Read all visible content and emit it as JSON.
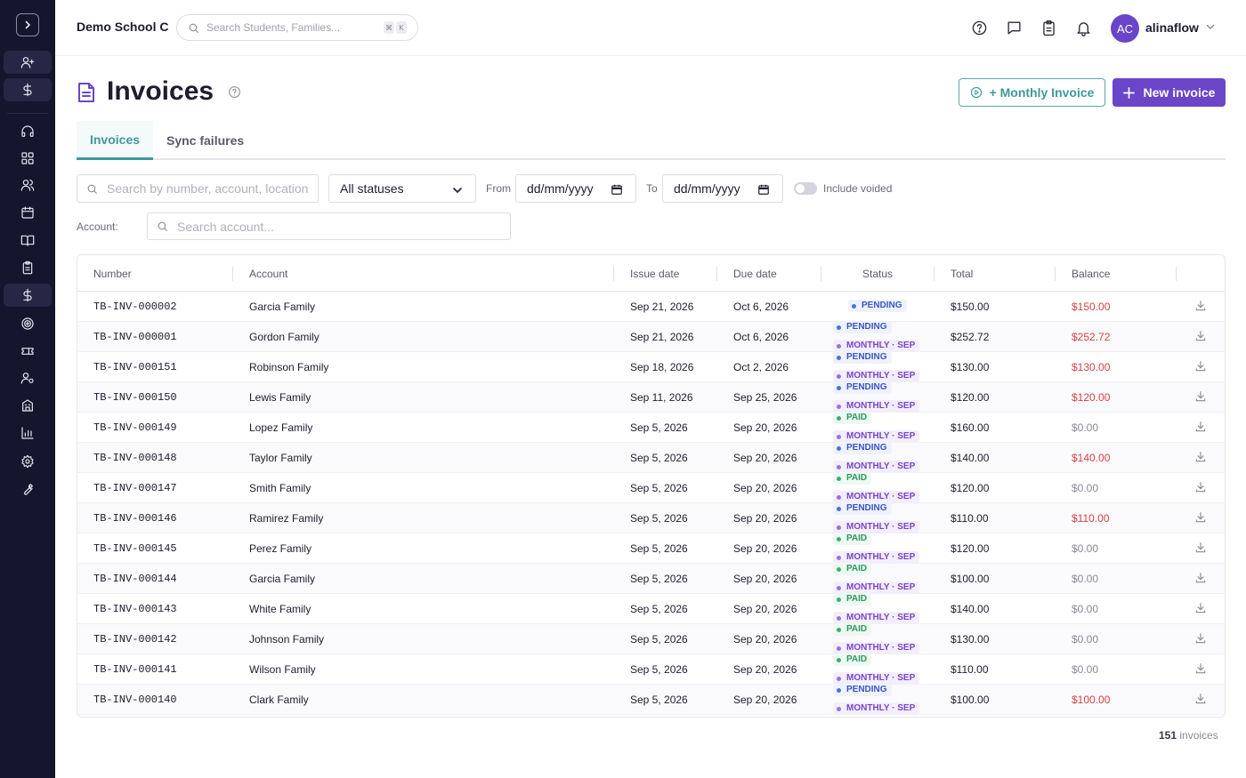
{
  "app": {
    "school_name": "Demo School C"
  },
  "search": {
    "placeholder": "Search Students, Families...",
    "kbd_1": "⌘",
    "kbd_2": "K"
  },
  "user": {
    "initials": "AC",
    "name": "alinaflow"
  },
  "page": {
    "title": "Invoices"
  },
  "actions": {
    "monthly_invoice": "+ Monthly Invoice",
    "new_invoice": "New invoice"
  },
  "tabs": [
    {
      "label": "Invoices",
      "active": true
    },
    {
      "label": "Sync failures",
      "active": false
    }
  ],
  "filters": {
    "search_placeholder": "Search by number, account, location",
    "status_value": "All statuses",
    "from_label": "From",
    "from_value": "dd/mm/yyyy",
    "to_label": "To",
    "to_value": "dd/mm/yyyy",
    "include_voided_label": "Include voided",
    "include_voided": false,
    "account_label": "Account:",
    "account_placeholder": "Search account..."
  },
  "table": {
    "columns": [
      "Number",
      "Account",
      "Issue date",
      "Due date",
      "Status",
      "Total",
      "Balance"
    ],
    "rows": [
      {
        "number": "TB-INV-000002",
        "account": "Garcia Family",
        "issue": "Sep 21, 2026",
        "due": "Oct 6, 2026",
        "status": "PENDING",
        "tag": "",
        "total": "$150.00",
        "balance": "$150.00"
      },
      {
        "number": "TB-INV-000001",
        "account": "Gordon Family",
        "issue": "Sep 21, 2026",
        "due": "Oct 6, 2026",
        "status": "PENDING",
        "tag": "MONTHLY · SEP",
        "total": "$252.72",
        "balance": "$252.72"
      },
      {
        "number": "TB-INV-000151",
        "account": "Robinson Family",
        "issue": "Sep 18, 2026",
        "due": "Oct 2, 2026",
        "status": "PENDING",
        "tag": "MONTHLY · SEP",
        "total": "$130.00",
        "balance": "$130.00"
      },
      {
        "number": "TB-INV-000150",
        "account": "Lewis Family",
        "issue": "Sep 11, 2026",
        "due": "Sep 25, 2026",
        "status": "PENDING",
        "tag": "MONTHLY · SEP",
        "total": "$120.00",
        "balance": "$120.00"
      },
      {
        "number": "TB-INV-000149",
        "account": "Lopez Family",
        "issue": "Sep 5, 2026",
        "due": "Sep 20, 2026",
        "status": "PAID",
        "tag": "MONTHLY · SEP",
        "total": "$160.00",
        "balance": "$0.00"
      },
      {
        "number": "TB-INV-000148",
        "account": "Taylor Family",
        "issue": "Sep 5, 2026",
        "due": "Sep 20, 2026",
        "status": "PENDING",
        "tag": "MONTHLY · SEP",
        "total": "$140.00",
        "balance": "$140.00"
      },
      {
        "number": "TB-INV-000147",
        "account": "Smith Family",
        "issue": "Sep 5, 2026",
        "due": "Sep 20, 2026",
        "status": "PAID",
        "tag": "MONTHLY · SEP",
        "total": "$120.00",
        "balance": "$0.00"
      },
      {
        "number": "TB-INV-000146",
        "account": "Ramirez Family",
        "issue": "Sep 5, 2026",
        "due": "Sep 20, 2026",
        "status": "PENDING",
        "tag": "MONTHLY · SEP",
        "total": "$110.00",
        "balance": "$110.00"
      },
      {
        "number": "TB-INV-000145",
        "account": "Perez Family",
        "issue": "Sep 5, 2026",
        "due": "Sep 20, 2026",
        "status": "PAID",
        "tag": "MONTHLY · SEP",
        "total": "$120.00",
        "balance": "$0.00"
      },
      {
        "number": "TB-INV-000144",
        "account": "Garcia Family",
        "issue": "Sep 5, 2026",
        "due": "Sep 20, 2026",
        "status": "PAID",
        "tag": "MONTHLY · SEP",
        "total": "$100.00",
        "balance": "$0.00"
      },
      {
        "number": "TB-INV-000143",
        "account": "White Family",
        "issue": "Sep 5, 2026",
        "due": "Sep 20, 2026",
        "status": "PAID",
        "tag": "MONTHLY · SEP",
        "total": "$140.00",
        "balance": "$0.00"
      },
      {
        "number": "TB-INV-000142",
        "account": "Johnson Family",
        "issue": "Sep 5, 2026",
        "due": "Sep 20, 2026",
        "status": "PAID",
        "tag": "MONTHLY · SEP",
        "total": "$130.00",
        "balance": "$0.00"
      },
      {
        "number": "TB-INV-000141",
        "account": "Wilson Family",
        "issue": "Sep 5, 2026",
        "due": "Sep 20, 2026",
        "status": "PAID",
        "tag": "MONTHLY · SEP",
        "total": "$110.00",
        "balance": "$0.00"
      },
      {
        "number": "TB-INV-000140",
        "account": "Clark Family",
        "issue": "Sep 5, 2026",
        "due": "Sep 20, 2026",
        "status": "PENDING",
        "tag": "MONTHLY · SEP",
        "total": "$100.00",
        "balance": "$100.00"
      }
    ]
  },
  "footer": {
    "count": "151",
    "count_label": "invoices"
  },
  "colors": {
    "brand": "#6a45c8",
    "accent": "#3e9a9a",
    "sidebar": "#15152e",
    "balance_due": "#d94040"
  },
  "icons": {
    "sidebar": [
      "add-user-icon",
      "dollar-icon",
      "headset-icon",
      "dashboard-icon",
      "users-icon",
      "calendar-icon",
      "book-icon",
      "clipboard-icon",
      "dollar-icon",
      "target-icon",
      "ticket-icon",
      "user-settings-icon",
      "building-icon",
      "chart-icon",
      "gear-icon",
      "wrench-icon"
    ],
    "topbar": [
      "help-icon",
      "chat-icon",
      "clipboard-icon",
      "bell-icon"
    ]
  }
}
